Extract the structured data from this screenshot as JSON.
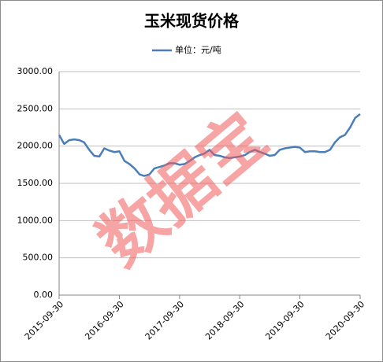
{
  "chart_data": {
    "type": "line",
    "title": "玉米现货价格",
    "watermark": "数据宝",
    "x": [
      "2015-09-30",
      "2015-10-31",
      "2015-11-30",
      "2015-12-31",
      "2016-01-31",
      "2016-02-29",
      "2016-03-31",
      "2016-04-30",
      "2016-05-31",
      "2016-06-30",
      "2016-07-31",
      "2016-08-31",
      "2016-09-30",
      "2016-10-31",
      "2016-11-30",
      "2016-12-31",
      "2017-01-31",
      "2017-02-28",
      "2017-03-31",
      "2017-04-30",
      "2017-05-31",
      "2017-06-30",
      "2017-07-31",
      "2017-08-31",
      "2017-09-30",
      "2017-10-31",
      "2017-11-30",
      "2017-12-31",
      "2018-01-31",
      "2018-02-28",
      "2018-03-31",
      "2018-04-30",
      "2018-05-31",
      "2018-06-30",
      "2018-07-31",
      "2018-08-31",
      "2018-09-30",
      "2018-10-31",
      "2018-11-30",
      "2018-12-31",
      "2019-01-31",
      "2019-02-28",
      "2019-03-31",
      "2019-04-30",
      "2019-05-31",
      "2019-06-30",
      "2019-07-31",
      "2019-08-31",
      "2019-09-30",
      "2019-10-31",
      "2019-11-30",
      "2019-12-31",
      "2020-01-31",
      "2020-02-29",
      "2020-03-31",
      "2020-04-30",
      "2020-05-31",
      "2020-06-30",
      "2020-07-31",
      "2020-08-31",
      "2020-09-30"
    ],
    "series": [
      {
        "name": "单位：元/吨",
        "color": "#4a7ebb",
        "values": [
          2150,
          2030,
          2080,
          2090,
          2080,
          2050,
          1950,
          1870,
          1860,
          1970,
          1940,
          1920,
          1930,
          1800,
          1760,
          1700,
          1620,
          1600,
          1620,
          1700,
          1720,
          1740,
          1770,
          1770,
          1750,
          1760,
          1800,
          1850,
          1880,
          1900,
          1950,
          1880,
          1870,
          1850,
          1840,
          1850,
          1860,
          1880,
          1920,
          1950,
          1920,
          1900,
          1870,
          1880,
          1950,
          1970,
          1980,
          1990,
          1980,
          1920,
          1930,
          1930,
          1920,
          1920,
          1950,
          2050,
          2120,
          2150,
          2250,
          2380,
          2430
        ]
      }
    ],
    "xlim": [
      "2015-09-30",
      "2020-09-30"
    ],
    "xticks": [
      "2015-09-30",
      "2016-09-30",
      "2017-09-30",
      "2018-09-30",
      "2019-09-30",
      "2020-09-30"
    ],
    "ylim": [
      0,
      3000
    ],
    "yticks": [
      {
        "value": 0,
        "label": "0.00"
      },
      {
        "value": 500,
        "label": "500.00"
      },
      {
        "value": 1000,
        "label": "1000.00"
      },
      {
        "value": 1500,
        "label": "1500.00"
      },
      {
        "value": 2000,
        "label": "2000.00"
      },
      {
        "value": 2500,
        "label": "2500.00"
      },
      {
        "value": 3000,
        "label": "3000.00"
      }
    ],
    "grid": true
  }
}
